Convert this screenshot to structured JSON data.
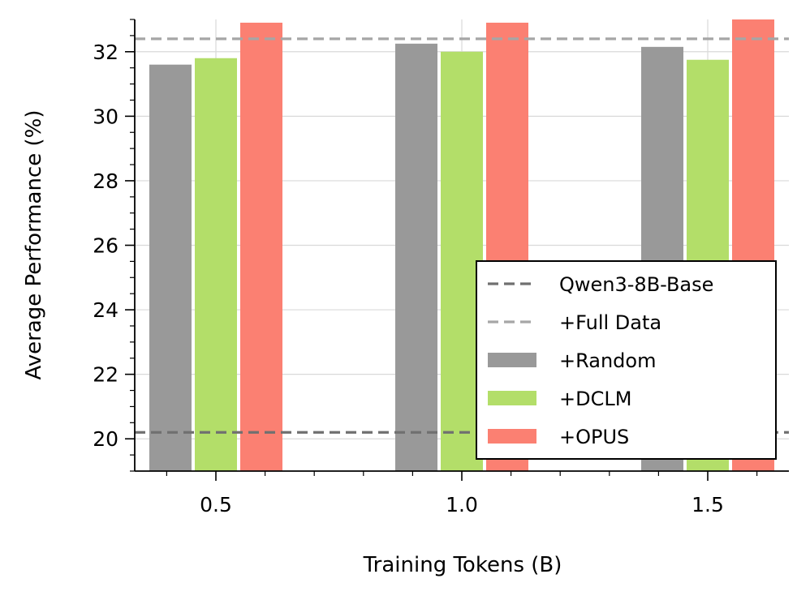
{
  "chart_data": {
    "type": "bar",
    "xlabel": "Training Tokens (B)",
    "ylabel": "Average Performance (%)",
    "categories": [
      "0.5",
      "1.0",
      "1.5"
    ],
    "ylim": [
      19,
      33
    ],
    "yticks": [
      20,
      22,
      24,
      26,
      28,
      30,
      32
    ],
    "grid": true,
    "legend_position": "bottom-right",
    "series": [
      {
        "name": "+Random",
        "color": "#999999",
        "values": [
          31.6,
          32.25,
          32.15
        ]
      },
      {
        "name": "+DCLM",
        "color": "#b3de69",
        "values": [
          31.8,
          32.0,
          31.75
        ]
      },
      {
        "name": "+OPUS",
        "color": "#fb8072",
        "values": [
          32.9,
          32.9,
          33.0
        ]
      }
    ],
    "reference_lines": [
      {
        "name": "Qwen3-8B-Base",
        "value": 20.2,
        "color": "#707070",
        "style": "dashed"
      },
      {
        "name": "+Full Data",
        "value": 32.4,
        "color": "#a6a6a6",
        "style": "dashed"
      }
    ]
  }
}
